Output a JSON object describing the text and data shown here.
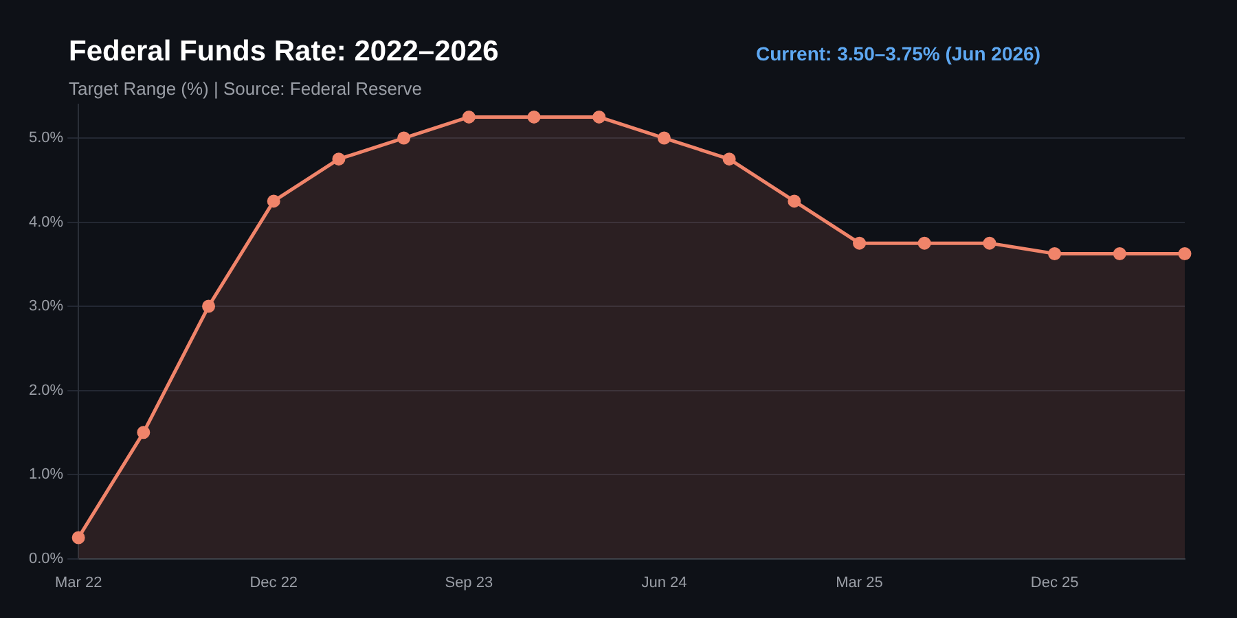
{
  "chart_data": {
    "type": "area",
    "title": "Federal Funds Rate: 2022–2026",
    "subtitle": "Target Range (%) | Source: Federal Reserve",
    "annotations": [
      "Current: 3.50–3.75% (Jun 2026)"
    ],
    "categories": [
      "Mar 22",
      null,
      null,
      "Dec 22",
      null,
      null,
      "Sep 23",
      null,
      null,
      "Jun 24",
      null,
      null,
      "Mar 25",
      null,
      null,
      "Dec 25",
      null,
      null
    ],
    "series": [
      {
        "color": "#f0846a",
        "values": [
          0.25,
          1.5,
          3.0,
          4.25,
          4.75,
          5.0,
          5.25,
          5.25,
          5.25,
          5.0,
          4.75,
          4.25,
          3.75,
          3.75,
          3.75,
          3.625,
          3.625,
          3.625
        ]
      }
    ],
    "ylim": [
      0,
      5.4
    ],
    "yticks": [
      {
        "value": 0,
        "label": "0.0%"
      },
      {
        "value": 1,
        "label": "1.0%"
      },
      {
        "value": 2,
        "label": "2.0%"
      },
      {
        "value": 3,
        "label": "3.0%"
      },
      {
        "value": 4,
        "label": "4.0%"
      },
      {
        "value": 5,
        "label": "5.0%"
      }
    ],
    "grid": "y",
    "legend": false,
    "marker": "circle",
    "line_style": "solid"
  }
}
